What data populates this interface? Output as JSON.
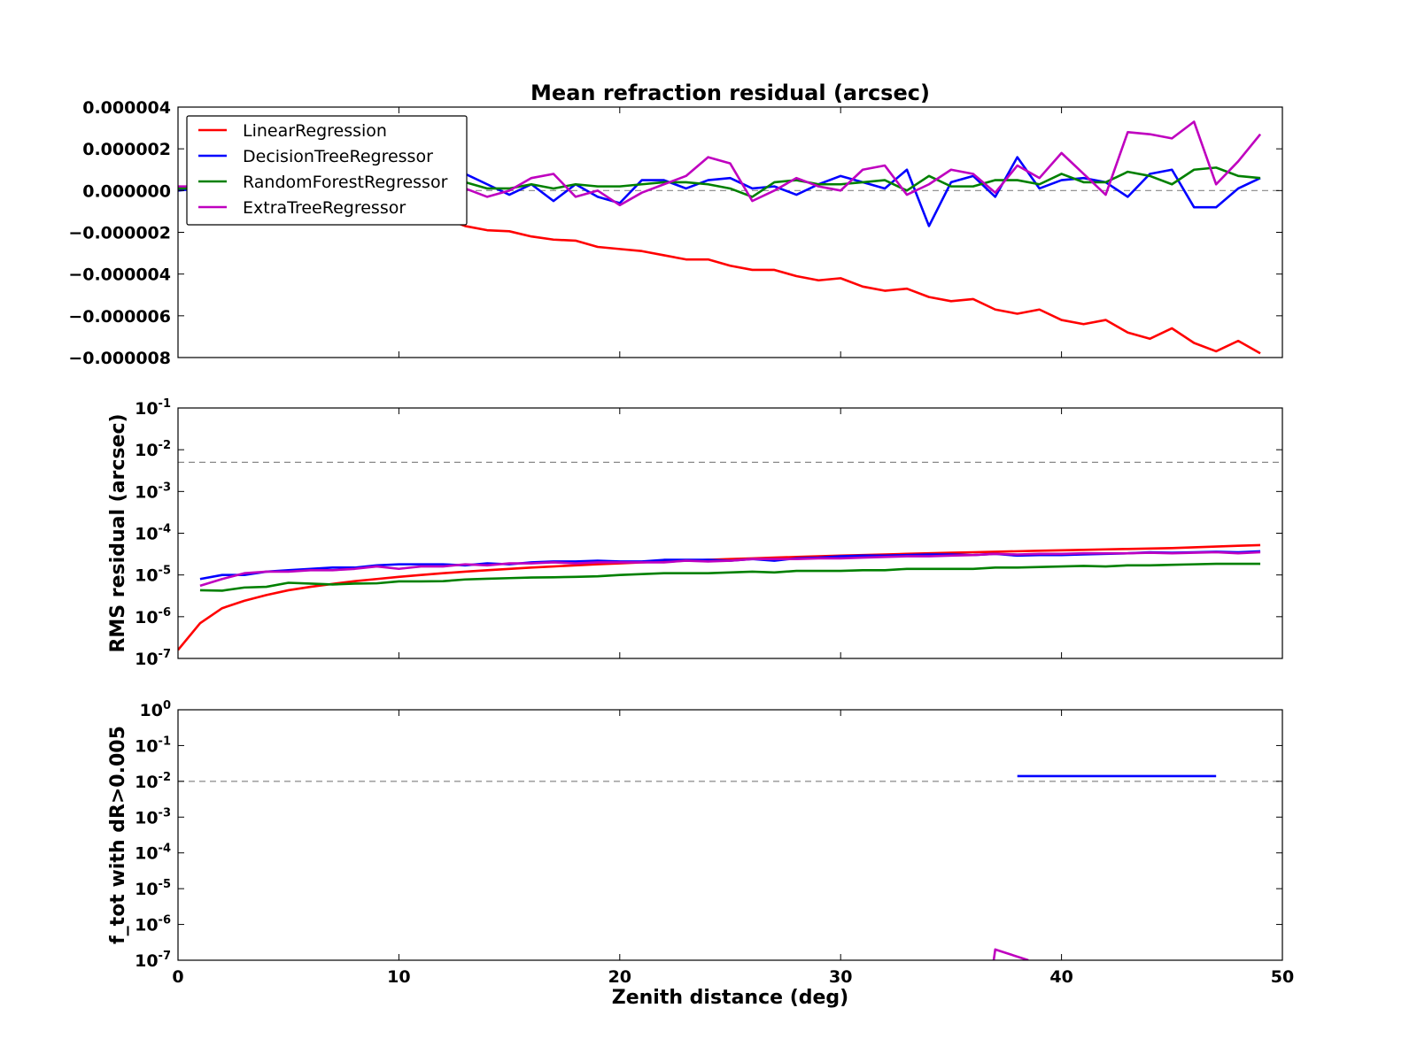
{
  "chart_data": [
    {
      "type": "line",
      "title": "Mean refraction residual (arcsec)",
      "ylabel": "",
      "xlim": [
        0,
        50
      ],
      "ylim": [
        -8e-06,
        4e-06
      ],
      "yscale": "linear",
      "yticks": [
        -8e-06,
        -6e-06,
        -4e-06,
        -2e-06,
        0.0,
        2e-06,
        4e-06
      ],
      "ytick_labels": [
        "−0.000008",
        "−0.000006",
        "−0.000004",
        "−0.000002",
        "0.000000",
        "0.000002",
        "0.000004"
      ],
      "reference_line": 0.0,
      "legend": {
        "placement": "top-left",
        "entries": [
          "LinearRegression",
          "DecisionTreeRegressor",
          "RandomForestRegressor",
          "ExtraTreeRegressor"
        ]
      },
      "series": [
        {
          "name": "LinearRegression",
          "color": "#ff0000",
          "x_start": 0,
          "values": [
            1e-07,
            1e-07,
            1e-07,
            1e-07,
            1e-07,
            1e-07,
            1e-07,
            1e-07,
            1e-07,
            1e-07,
            -5e-07,
            -9e-07,
            -1.3e-06,
            -1.7e-06,
            -1.9e-06,
            -1.95e-06,
            -2.2e-06,
            -2.35e-06,
            -2.4e-06,
            -2.7e-06,
            -2.8e-06,
            -2.9e-06,
            -3.1e-06,
            -3.3e-06,
            -3.3e-06,
            -3.6e-06,
            -3.8e-06,
            -3.8e-06,
            -4.1e-06,
            -4.3e-06,
            -4.2e-06,
            -4.6e-06,
            -4.8e-06,
            -4.7e-06,
            -5.1e-06,
            -5.3e-06,
            -5.2e-06,
            -5.7e-06,
            -5.9e-06,
            -5.7e-06,
            -6.2e-06,
            -6.4e-06,
            -6.2e-06,
            -6.8e-06,
            -7.1e-06,
            -6.6e-06,
            -7.3e-06,
            -7.7e-06,
            -7.2e-06,
            -7.8e-06
          ]
        },
        {
          "name": "DecisionTreeRegressor",
          "color": "#0000ff",
          "x_start": 0,
          "values": [
            0.0,
            1e-07,
            1e-07,
            1e-07,
            1e-07,
            1e-07,
            1e-07,
            1e-07,
            1e-07,
            1e-07,
            3e-07,
            5e-07,
            8e-07,
            8e-07,
            3e-07,
            -2e-07,
            3e-07,
            -5e-07,
            3e-07,
            -3e-07,
            -6e-07,
            5e-07,
            5e-07,
            1e-07,
            5e-07,
            6e-07,
            1e-07,
            2e-07,
            -2e-07,
            3e-07,
            7e-07,
            4e-07,
            1e-07,
            1e-06,
            -1.7e-06,
            4e-07,
            7e-07,
            -3e-07,
            1.6e-06,
            1e-07,
            5e-07,
            6e-07,
            4e-07,
            -3e-07,
            8e-07,
            1e-06,
            -8e-07,
            -8e-07,
            1e-07,
            6e-07
          ]
        },
        {
          "name": "RandomForestRegressor",
          "color": "#008000",
          "x_start": 0,
          "values": [
            1e-07,
            1e-07,
            1e-07,
            1e-07,
            1e-07,
            1e-07,
            1e-07,
            1e-07,
            1e-07,
            1e-07,
            3e-07,
            3e-07,
            4e-07,
            4e-07,
            1e-07,
            1e-07,
            3e-07,
            1e-07,
            3e-07,
            2e-07,
            2e-07,
            3e-07,
            4e-07,
            4e-07,
            3e-07,
            1e-07,
            -3e-07,
            4e-07,
            5e-07,
            3e-07,
            3e-07,
            4e-07,
            5e-07,
            0.0,
            7e-07,
            2e-07,
            2e-07,
            5e-07,
            5e-07,
            3e-07,
            8e-07,
            4e-07,
            4e-07,
            9e-07,
            7e-07,
            3e-07,
            1e-06,
            1.1e-06,
            7e-07,
            6e-07
          ]
        },
        {
          "name": "ExtraTreeRegressor",
          "color": "#bf00bf",
          "x_start": 0,
          "values": [
            2e-07,
            2e-07,
            2e-07,
            2e-07,
            2e-07,
            2e-07,
            2e-07,
            2e-07,
            2e-07,
            2e-07,
            2e-07,
            2e-07,
            2e-07,
            1e-07,
            -3e-07,
            0.0,
            6e-07,
            8e-07,
            -3e-07,
            0.0,
            -7e-07,
            -1e-07,
            3e-07,
            7e-07,
            1.6e-06,
            1.3e-06,
            -5e-07,
            0.0,
            6e-07,
            2e-07,
            0.0,
            1e-06,
            1.2e-06,
            -2e-07,
            3e-07,
            1e-06,
            8e-07,
            -1e-07,
            1.2e-06,
            6e-07,
            1.8e-06,
            8e-07,
            -2e-07,
            2.8e-06,
            2.7e-06,
            2.5e-06,
            3.3e-06,
            3e-07,
            1.4e-06,
            2.7e-06
          ]
        }
      ]
    },
    {
      "type": "line",
      "ylabel": "RMS residual (arcsec)",
      "xlim": [
        0,
        50
      ],
      "ylim": [
        1e-07,
        0.1
      ],
      "yscale": "log",
      "yticks": [
        1e-07,
        1e-06,
        1e-05,
        0.0001,
        0.001,
        0.01,
        0.1
      ],
      "ytick_labels": [
        {
          "base": "10",
          "exp": "-7"
        },
        {
          "base": "10",
          "exp": "-6"
        },
        {
          "base": "10",
          "exp": "-5"
        },
        {
          "base": "10",
          "exp": "-4"
        },
        {
          "base": "10",
          "exp": "-3"
        },
        {
          "base": "10",
          "exp": "-2"
        },
        {
          "base": "10",
          "exp": "-1"
        }
      ],
      "reference_line": 0.005,
      "series": [
        {
          "name": "LinearRegression",
          "color": "#ff0000",
          "x_start": 0,
          "values": [
            1.6e-07,
            7e-07,
            1.6e-06,
            2.4e-06,
            3.3e-06,
            4.3e-06,
            5.2e-06,
            6.1e-06,
            7.1e-06,
            8e-06,
            9e-06,
            1e-05,
            1.1e-05,
            1.2e-05,
            1.3e-05,
            1.4e-05,
            1.5e-05,
            1.6e-05,
            1.7e-05,
            1.8e-05,
            1.9e-05,
            2e-05,
            2.1e-05,
            2.2e-05,
            2.3e-05,
            2.4e-05,
            2.5e-05,
            2.6e-05,
            2.7e-05,
            2.8e-05,
            2.9e-05,
            3e-05,
            3.1e-05,
            3.2e-05,
            3.3e-05,
            3.4e-05,
            3.5e-05,
            3.6e-05,
            3.7e-05,
            3.8e-05,
            3.9e-05,
            4e-05,
            4.1e-05,
            4.2e-05,
            4.3e-05,
            4.4e-05,
            4.6e-05,
            4.8e-05,
            5e-05,
            5.2e-05
          ]
        },
        {
          "name": "DecisionTreeRegressor",
          "color": "#0000ff",
          "x_start": 1,
          "values": [
            8e-06,
            1e-05,
            1e-05,
            1.2e-05,
            1.3e-05,
            1.4e-05,
            1.5e-05,
            1.5e-05,
            1.7e-05,
            1.8e-05,
            1.8e-05,
            1.8e-05,
            1.7e-05,
            1.9e-05,
            1.8e-05,
            2e-05,
            2.1e-05,
            2.1e-05,
            2.2e-05,
            2.1e-05,
            2.1e-05,
            2.3e-05,
            2.3e-05,
            2.3e-05,
            2.2e-05,
            2.4e-05,
            2.2e-05,
            2.5e-05,
            2.6e-05,
            2.8e-05,
            2.9e-05,
            2.9e-05,
            3e-05,
            3.1e-05,
            3.1e-05,
            3e-05,
            3.2e-05,
            2.9e-05,
            3e-05,
            3e-05,
            3.1e-05,
            3.2e-05,
            3.3e-05,
            3.5e-05,
            3.4e-05,
            3.5e-05,
            3.6e-05,
            3.5e-05,
            3.7e-05
          ]
        },
        {
          "name": "RandomForestRegressor",
          "color": "#008000",
          "x_start": 1,
          "values": [
            4.3e-06,
            4.2e-06,
            5e-06,
            5.2e-06,
            6.5e-06,
            6.2e-06,
            5.9e-06,
            6.2e-06,
            6.3e-06,
            7e-06,
            7e-06,
            7.1e-06,
            7.8e-06,
            8.1e-06,
            8.4e-06,
            8.7e-06,
            8.8e-06,
            9e-06,
            9.3e-06,
            1e-05,
            1.05e-05,
            1.1e-05,
            1.1e-05,
            1.1e-05,
            1.15e-05,
            1.2e-05,
            1.15e-05,
            1.25e-05,
            1.25e-05,
            1.25e-05,
            1.3e-05,
            1.3e-05,
            1.4e-05,
            1.4e-05,
            1.4e-05,
            1.4e-05,
            1.5e-05,
            1.5e-05,
            1.55e-05,
            1.6e-05,
            1.65e-05,
            1.6e-05,
            1.7e-05,
            1.7e-05,
            1.75e-05,
            1.8e-05,
            1.85e-05,
            1.85e-05,
            1.85e-05
          ]
        },
        {
          "name": "ExtraTreeRegressor",
          "color": "#bf00bf",
          "x_start": 1,
          "values": [
            5.5e-06,
            8e-06,
            1.1e-05,
            1.2e-05,
            1.2e-05,
            1.3e-05,
            1.3e-05,
            1.4e-05,
            1.6e-05,
            1.4e-05,
            1.6e-05,
            1.6e-05,
            1.8e-05,
            1.7e-05,
            1.9e-05,
            1.9e-05,
            2e-05,
            1.9e-05,
            2e-05,
            2e-05,
            2e-05,
            2e-05,
            2.2e-05,
            2.1e-05,
            2.2e-05,
            2.4e-05,
            2.4e-05,
            2.4e-05,
            2.5e-05,
            2.5e-05,
            2.6e-05,
            2.7e-05,
            2.8e-05,
            2.8e-05,
            2.9e-05,
            3e-05,
            3.2e-05,
            3.1e-05,
            3.2e-05,
            3.2e-05,
            3.3e-05,
            3.3e-05,
            3.3e-05,
            3.4e-05,
            3.3e-05,
            3.4e-05,
            3.5e-05,
            3.3e-05,
            3.5e-05
          ]
        }
      ]
    },
    {
      "type": "line",
      "ylabel": "f_tot with dR>0.005",
      "xlabel": "Zenith distance (deg)",
      "xlim": [
        0,
        50
      ],
      "xticks": [
        0,
        10,
        20,
        30,
        40,
        50
      ],
      "ylim": [
        1e-07,
        1
      ],
      "yscale": "log",
      "yticks": [
        1e-07,
        1e-06,
        1e-05,
        0.0001,
        0.001,
        0.01,
        0.1,
        1
      ],
      "ytick_labels": [
        {
          "base": "10",
          "exp": "-7"
        },
        {
          "base": "10",
          "exp": "-6"
        },
        {
          "base": "10",
          "exp": "-5"
        },
        {
          "base": "10",
          "exp": "-4"
        },
        {
          "base": "10",
          "exp": "-3"
        },
        {
          "base": "10",
          "exp": "-2"
        },
        {
          "base": "10",
          "exp": "-1"
        },
        {
          "base": "10",
          "exp": "0"
        }
      ],
      "reference_line": 0.01,
      "series": [
        {
          "name": "DecisionTreeRegressor",
          "color": "#0000ff",
          "points": [
            [
              38,
              0.014
            ],
            [
              47,
              0.014
            ]
          ]
        },
        {
          "name": "ExtraTreeRegressor",
          "color": "#bf00bf",
          "points": [
            [
              36.7,
              1e-08
            ],
            [
              37,
              2e-07
            ],
            [
              38.5,
              1e-07
            ]
          ]
        }
      ]
    }
  ]
}
